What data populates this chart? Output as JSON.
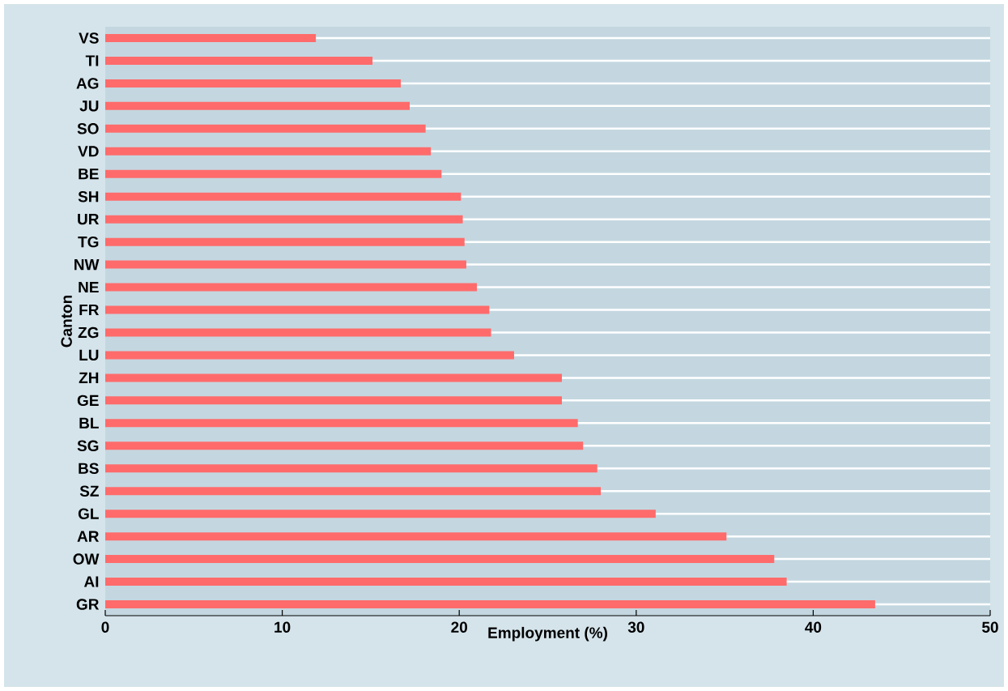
{
  "chart_data": {
    "type": "bar",
    "orientation": "horizontal",
    "xlabel": "Employment (%)",
    "ylabel": "Canton",
    "categories": [
      "VS",
      "TI",
      "AG",
      "JU",
      "SO",
      "VD",
      "BE",
      "SH",
      "UR",
      "TG",
      "NW",
      "NE",
      "FR",
      "ZG",
      "LU",
      "ZH",
      "GE",
      "BL",
      "SG",
      "BS",
      "SZ",
      "GL",
      "AR",
      "OW",
      "AI",
      "GR"
    ],
    "values": [
      11.9,
      15.1,
      16.7,
      17.2,
      18.1,
      18.4,
      19.0,
      20.1,
      20.2,
      20.3,
      20.4,
      21.0,
      21.7,
      21.8,
      23.1,
      25.8,
      25.8,
      26.7,
      27.0,
      27.8,
      28.0,
      31.1,
      35.1,
      37.8,
      38.5,
      43.5
    ],
    "color": "#ff6b6b",
    "xlim": [
      0,
      50
    ],
    "xticks": [
      0,
      10,
      20,
      30,
      40,
      50
    ],
    "grid": "y"
  }
}
